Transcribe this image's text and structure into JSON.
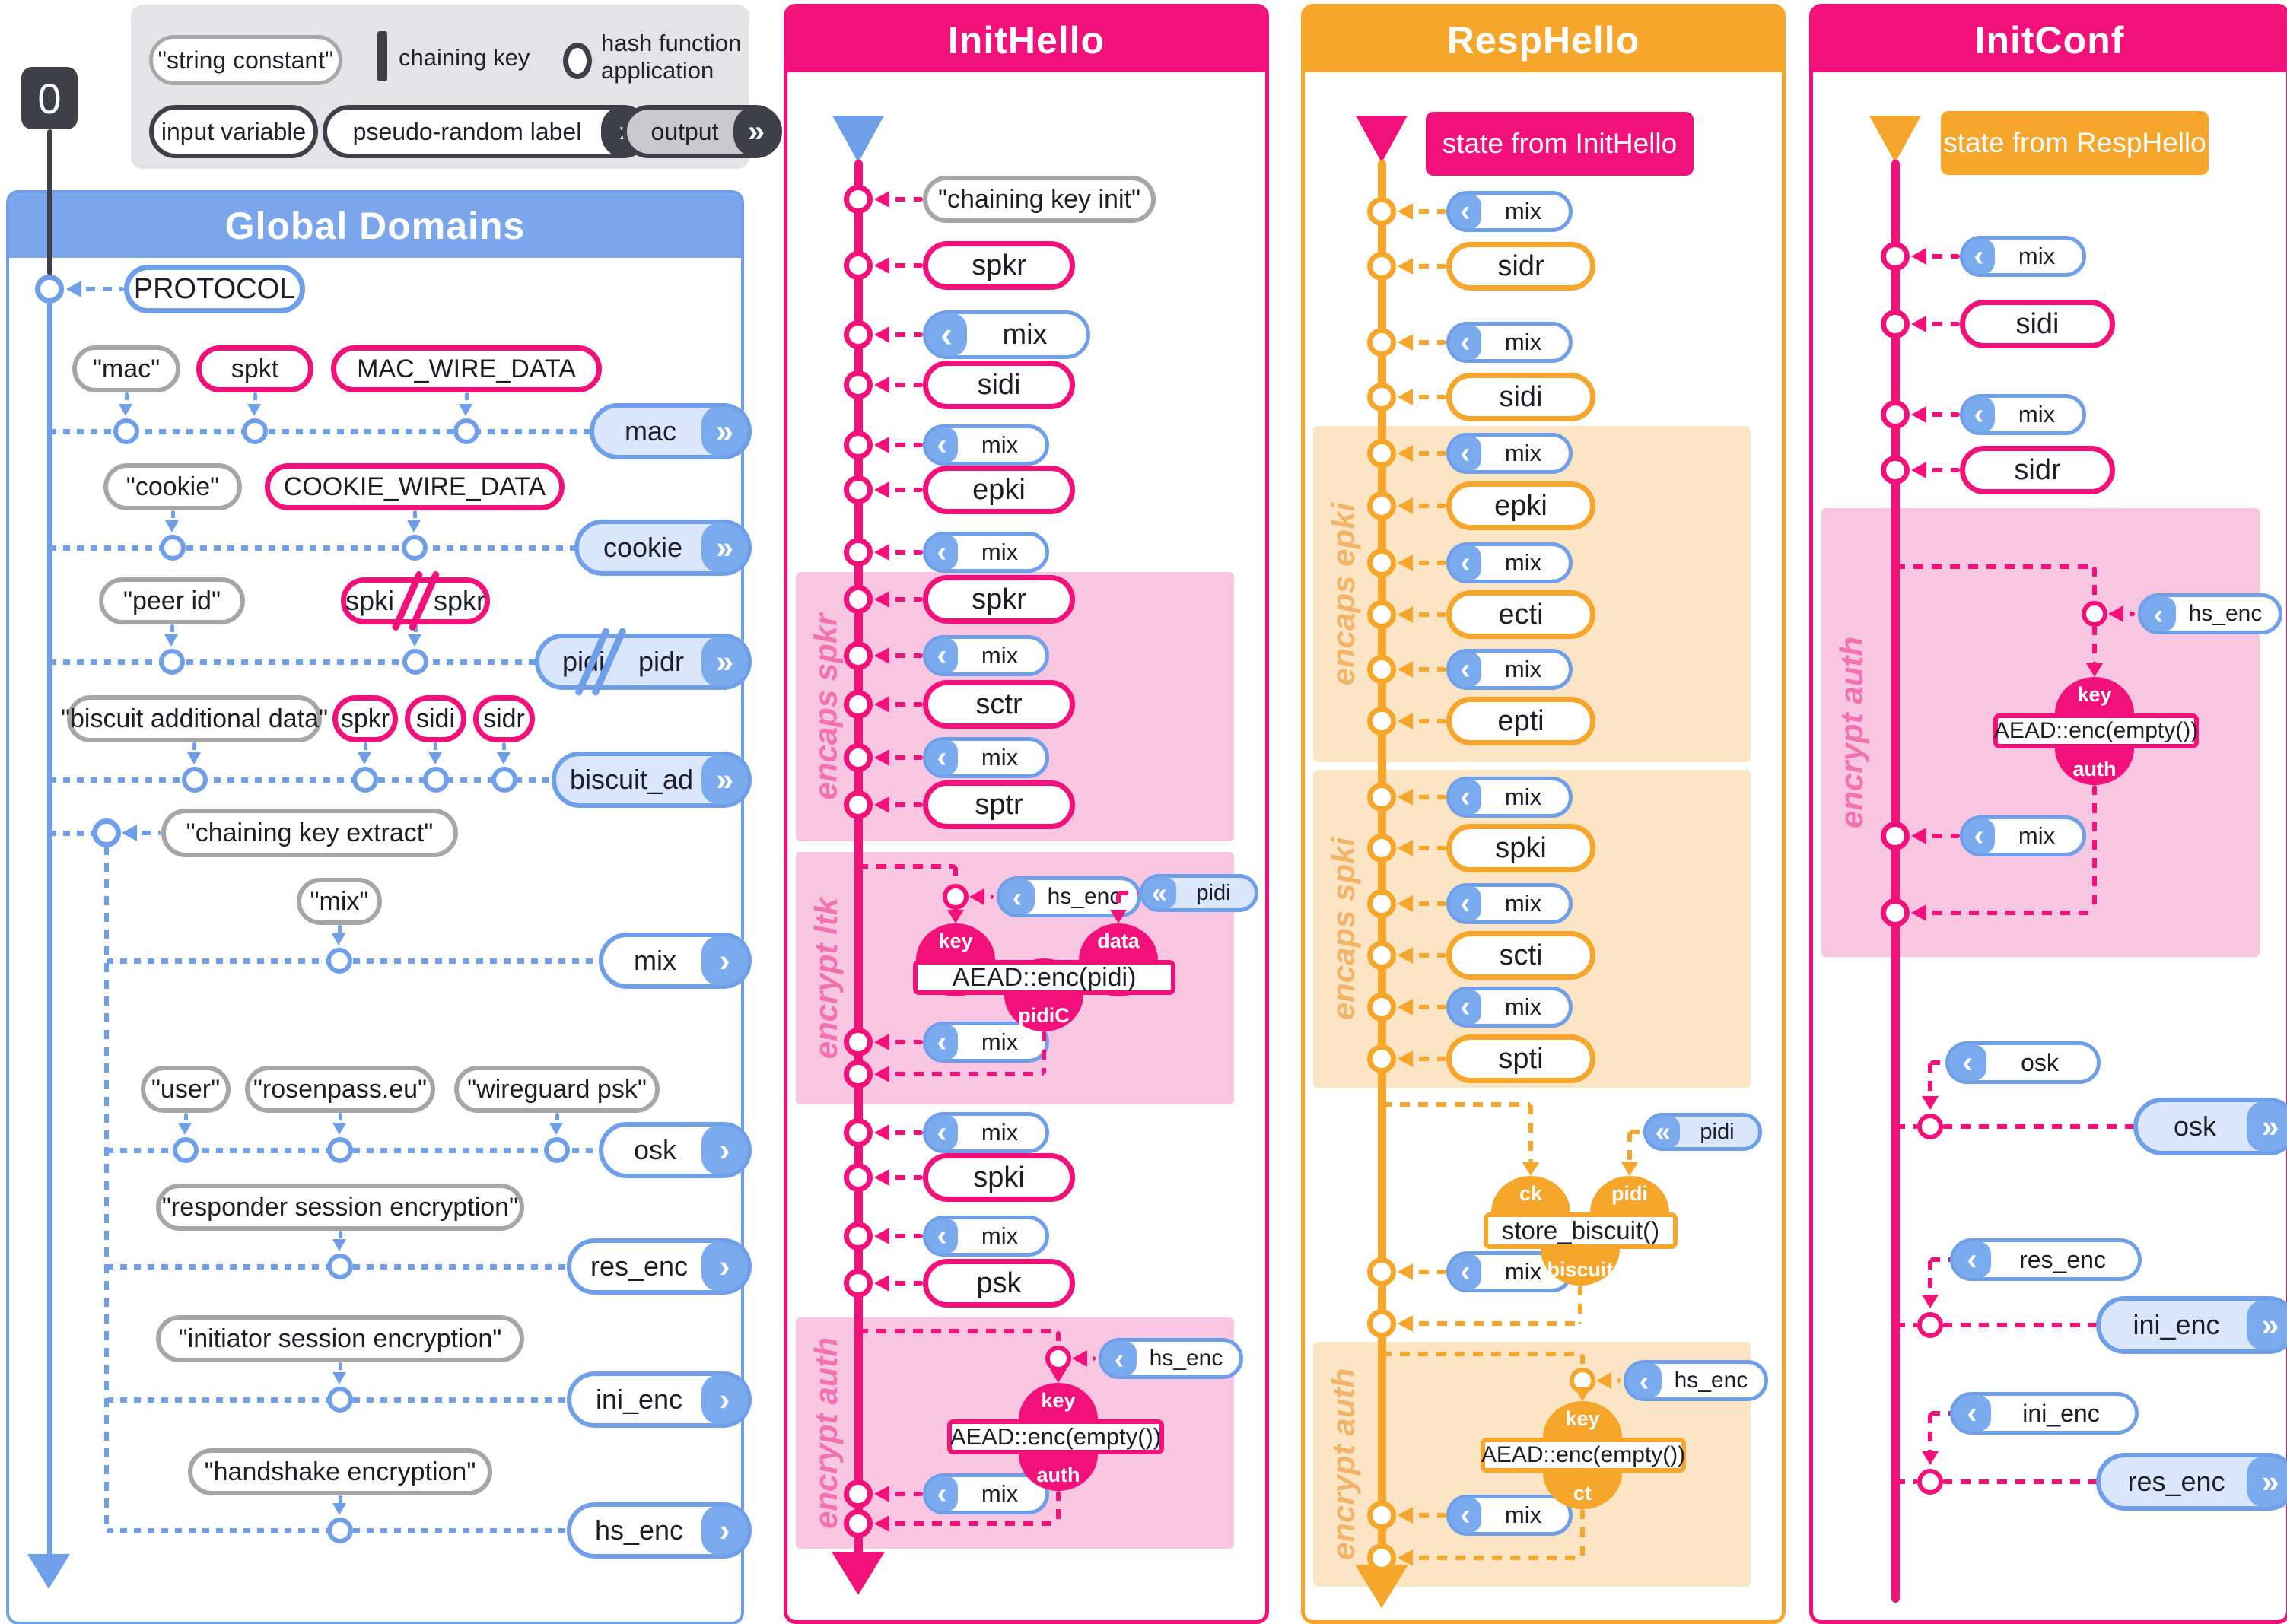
{
  "colors": {
    "blue": "#6f9fe8",
    "blue_cap": "#7babef",
    "blue_light": "#d9e6fb",
    "pink": "#f2117a",
    "pink_region": "#f9c6e1",
    "pink_label": "#f272b0",
    "orange": "#f7a62c",
    "orange_region": "#fce5c5",
    "orange_label": "#f2b469",
    "gray": "#a6a6a6",
    "dark": "#3f3f4a"
  },
  "zero_marker": "0",
  "legend": {
    "string_constant": "\"string constant\"",
    "chaining_key": "chaining key",
    "hash_function_line1": "hash function",
    "hash_function_line2": "application",
    "input_variable": "input variable",
    "pseudo_random_label": "pseudo-random label",
    "output": "output"
  },
  "global": {
    "title": "Global Domains",
    "protocol_label": "PROTOCOL",
    "extract_label": "\"chaining key extract\"",
    "rows": [
      {
        "inputs": [
          {
            "text": "\"mac\"",
            "style": "const"
          },
          {
            "text": "spkt",
            "style": "var"
          },
          {
            "text": "MAC_WIRE_DATA",
            "style": "var"
          }
        ],
        "output": {
          "text": "mac",
          "chevron": "double"
        }
      },
      {
        "inputs": [
          {
            "text": "\"cookie\"",
            "style": "const"
          },
          {
            "text": "COOKIE_WIRE_DATA",
            "style": "var"
          }
        ],
        "output": {
          "text": "cookie",
          "chevron": "double"
        }
      },
      {
        "inputs": [
          {
            "text": "\"peer id\"",
            "style": "const"
          },
          {
            "parts": [
              "spki",
              "spkr"
            ],
            "style": "var",
            "slashed": true
          }
        ],
        "output": {
          "parts": [
            "pidi",
            "pidr"
          ],
          "chevron": "double",
          "slashed": true
        }
      },
      {
        "inputs": [
          {
            "text": "\"biscuit additional data\"",
            "style": "const"
          },
          {
            "text": "spkr",
            "style": "var"
          },
          {
            "text": "sidi",
            "style": "var"
          },
          {
            "text": "sidr",
            "style": "var"
          }
        ],
        "output": {
          "text": "biscuit_ad",
          "chevron": "double"
        }
      },
      {
        "inputs": [
          {
            "text": "\"mix\"",
            "style": "const"
          }
        ],
        "output": {
          "text": "mix",
          "chevron": "single"
        }
      },
      {
        "inputs": [
          {
            "text": "\"user\"",
            "style": "const"
          },
          {
            "text": "\"rosenpass.eu\"",
            "style": "const"
          },
          {
            "text": "\"wireguard psk\"",
            "style": "const"
          }
        ],
        "output": {
          "text": "osk",
          "chevron": "single"
        }
      },
      {
        "inputs": [
          {
            "text": "\"responder session encryption\"",
            "style": "const"
          }
        ],
        "output": {
          "text": "res_enc",
          "chevron": "single"
        }
      },
      {
        "inputs": [
          {
            "text": "\"initiator session encryption\"",
            "style": "const"
          }
        ],
        "output": {
          "text": "ini_enc",
          "chevron": "single"
        }
      },
      {
        "inputs": [
          {
            "text": "\"handshake encryption\"",
            "style": "const"
          }
        ],
        "output": {
          "text": "hs_enc",
          "chevron": "single"
        }
      }
    ]
  },
  "inithello": {
    "title": "InitHello",
    "sequence": [
      {
        "kind": "const",
        "label": "\"chaining key init\""
      },
      {
        "kind": "var",
        "label": "spkr"
      },
      {
        "kind": "mix",
        "label": "mix"
      },
      {
        "kind": "var",
        "label": "sidi"
      },
      {
        "kind": "mix",
        "label": "mix"
      },
      {
        "kind": "var",
        "label": "epki"
      },
      {
        "kind": "mix",
        "label": "mix"
      },
      {
        "kind": "var",
        "label": "spkr"
      },
      {
        "kind": "mix",
        "label": "mix"
      },
      {
        "kind": "var",
        "label": "sctr"
      },
      {
        "kind": "mix",
        "label": "mix"
      },
      {
        "kind": "var",
        "label": "sptr"
      },
      {
        "kind": "mix",
        "label": "mix"
      },
      {
        "kind": "mix",
        "label": "mix"
      },
      {
        "kind": "var",
        "label": "spki"
      },
      {
        "kind": "mix",
        "label": "mix"
      },
      {
        "kind": "var",
        "label": "psk"
      },
      {
        "kind": "mix",
        "label": "mix"
      }
    ],
    "regions": [
      "encaps spkr",
      "encrypt ltk",
      "encrypt auth"
    ],
    "ltk": {
      "fn": "AEAD::enc(pidi)",
      "key_label": "key",
      "data_label": "data",
      "output_label": "pidiC",
      "key_source": "hs_enc",
      "data_source": "pidi"
    },
    "auth": {
      "fn": "AEAD::enc(empty())",
      "key_label": "key",
      "output_label": "auth",
      "key_source": "hs_enc"
    }
  },
  "resphello": {
    "title": "RespHello",
    "state_banner": "state from InitHello",
    "sequence": [
      {
        "kind": "mix",
        "label": "mix"
      },
      {
        "kind": "var",
        "label": "sidr"
      },
      {
        "kind": "mix",
        "label": "mix"
      },
      {
        "kind": "var",
        "label": "sidi"
      },
      {
        "kind": "mix",
        "label": "mix"
      },
      {
        "kind": "var",
        "label": "epki"
      },
      {
        "kind": "mix",
        "label": "mix"
      },
      {
        "kind": "var",
        "label": "ecti"
      },
      {
        "kind": "mix",
        "label": "mix"
      },
      {
        "kind": "var",
        "label": "epti"
      },
      {
        "kind": "mix",
        "label": "mix"
      },
      {
        "kind": "var",
        "label": "spki"
      },
      {
        "kind": "mix",
        "label": "mix"
      },
      {
        "kind": "var",
        "label": "scti"
      },
      {
        "kind": "mix",
        "label": "mix"
      },
      {
        "kind": "var",
        "label": "spti"
      },
      {
        "kind": "mix",
        "label": "mix"
      },
      {
        "kind": "mix",
        "label": "mix"
      }
    ],
    "regions": [
      "encaps epki",
      "encaps spki",
      "encrypt auth"
    ],
    "store": {
      "fn": "store_biscuit()",
      "in1_label": "ck",
      "in2_label": "pidi",
      "output_label": "biscuit",
      "in2_source": "pidi"
    },
    "auth": {
      "fn": "AEAD::enc(empty())",
      "key_label": "key",
      "output_label": "ct",
      "key_source": "hs_enc"
    }
  },
  "initconf": {
    "title": "InitConf",
    "state_banner": "state from RespHello",
    "sequence": [
      {
        "kind": "mix",
        "label": "mix"
      },
      {
        "kind": "var",
        "label": "sidi"
      },
      {
        "kind": "mix",
        "label": "mix"
      },
      {
        "kind": "var",
        "label": "sidr"
      },
      {
        "kind": "mix",
        "label": "mix"
      }
    ],
    "regions": [
      "encrypt auth"
    ],
    "auth": {
      "fn": "AEAD::enc(empty())",
      "key_label": "key",
      "output_label": "auth",
      "key_source": "hs_enc"
    },
    "outputs": [
      {
        "label": "osk",
        "output": "osk"
      },
      {
        "label": "res_enc",
        "output": "ini_enc"
      },
      {
        "label": "ini_enc",
        "output": "res_enc"
      }
    ]
  }
}
